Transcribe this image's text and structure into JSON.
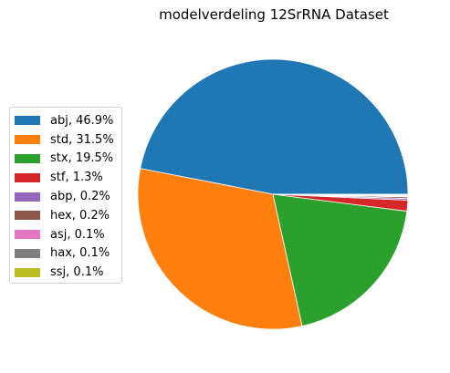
{
  "chart_data": {
    "type": "pie",
    "title": "modelverdeling 12SrRNA Dataset",
    "slices": [
      {
        "label": "abj",
        "value": 46.9,
        "display": "abj, 46.9%",
        "color": "#1f77b4"
      },
      {
        "label": "std",
        "value": 31.5,
        "display": "std, 31.5%",
        "color": "#ff7f0e"
      },
      {
        "label": "stx",
        "value": 19.5,
        "display": "stx, 19.5%",
        "color": "#2ca02c"
      },
      {
        "label": "stf",
        "value": 1.3,
        "display": "stf, 1.3%",
        "color": "#d62728"
      },
      {
        "label": "abp",
        "value": 0.2,
        "display": "abp, 0.2%",
        "color": "#9467bd"
      },
      {
        "label": "hex",
        "value": 0.2,
        "display": "hex, 0.2%",
        "color": "#8c564b"
      },
      {
        "label": "asj",
        "value": 0.1,
        "display": "asj, 0.1%",
        "color": "#e377c2"
      },
      {
        "label": "hax",
        "value": 0.1,
        "display": "hax, 0.1%",
        "color": "#7f7f7f"
      },
      {
        "label": "ssj",
        "value": 0.1,
        "display": "ssj, 0.1%",
        "color": "#bcbd22"
      }
    ],
    "start_angle_deg": 0,
    "direction": "counterclockwise",
    "legend_position": "center-left"
  }
}
